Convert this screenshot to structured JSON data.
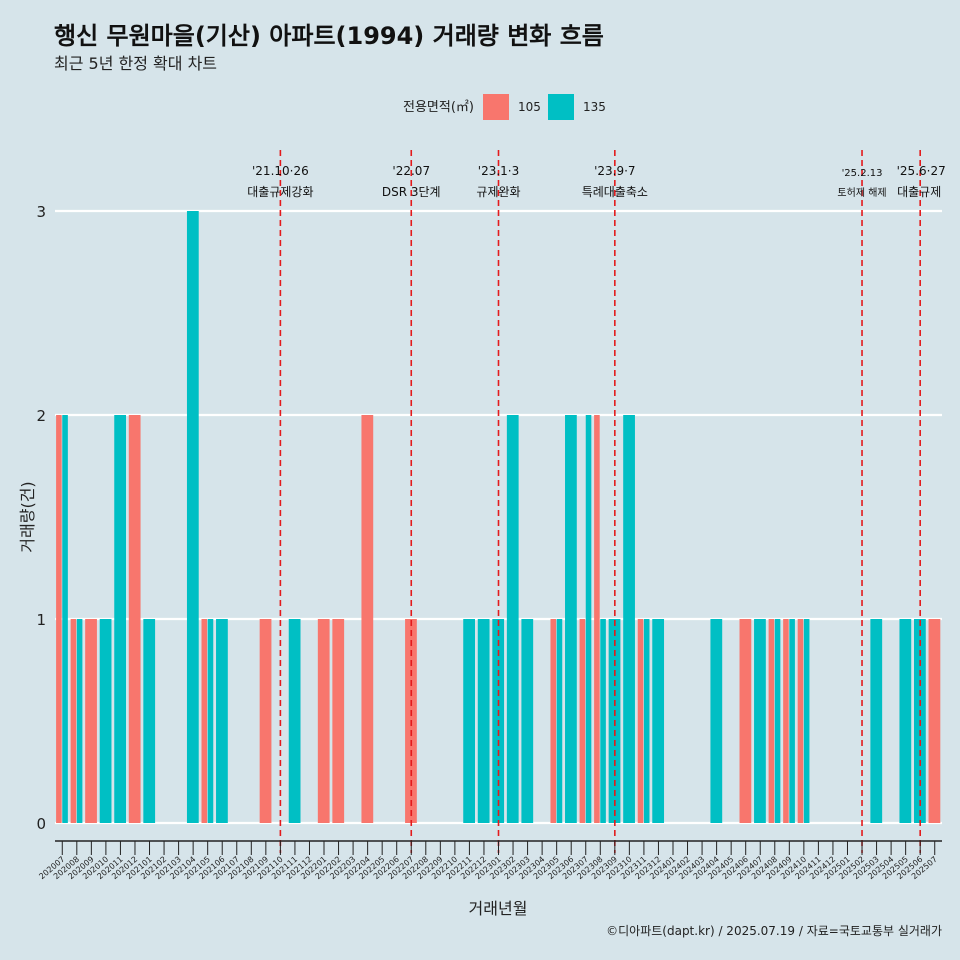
{
  "chart_data": {
    "type": "bar",
    "title": "행신 무원마을(기산) 아파트(1994) 거래량 변화 흐름",
    "subtitle": "최근 5년 한정 확대 차트",
    "xlabel": "거래년월",
    "ylabel": "거래량(건)",
    "caption": "©디아파트(dapt.kr) / 2025.07.19 / 자료=국토교통부 실거래가",
    "legend_title": "전용면적(㎡)",
    "legend_placement": "top",
    "ylim": [
      0,
      3
    ],
    "y_ticks": [
      "0",
      "1",
      "2",
      "3"
    ],
    "grid": true,
    "categories": [
      "202007",
      "202008",
      "202009",
      "202010",
      "202011",
      "202012",
      "202101",
      "202102",
      "202103",
      "202104",
      "202105",
      "202106",
      "202107",
      "202108",
      "202109",
      "202110",
      "202111",
      "202112",
      "202201",
      "202202",
      "202203",
      "202204",
      "202205",
      "202206",
      "202207",
      "202208",
      "202209",
      "202210",
      "202211",
      "202212",
      "202301",
      "202302",
      "202303",
      "202304",
      "202305",
      "202306",
      "202307",
      "202308",
      "202309",
      "202310",
      "202311",
      "202312",
      "202401",
      "202402",
      "202403",
      "202404",
      "202405",
      "202406",
      "202407",
      "202408",
      "202409",
      "202410",
      "202411",
      "202412",
      "202501",
      "202502",
      "202503",
      "202504",
      "202505",
      "202506",
      "202507"
    ],
    "series": [
      {
        "name": "105",
        "color": "#f8766d",
        "values": [
          2,
          1,
          1,
          0,
          0,
          2,
          0,
          0,
          0,
          0,
          1,
          0,
          0,
          0,
          1,
          0,
          0,
          0,
          1,
          1,
          0,
          2,
          0,
          0,
          1,
          0,
          0,
          0,
          0,
          0,
          0,
          0,
          0,
          0,
          1,
          0,
          1,
          2,
          0,
          0,
          1,
          0,
          0,
          0,
          0,
          0,
          0,
          1,
          0,
          1,
          1,
          1,
          0,
          0,
          0,
          0,
          0,
          0,
          0,
          0,
          1
        ]
      },
      {
        "name": "135",
        "color": "#00bfc4",
        "values": [
          2,
          1,
          0,
          1,
          2,
          0,
          1,
          0,
          0,
          3,
          1,
          1,
          0,
          0,
          0,
          0,
          1,
          0,
          0,
          0,
          0,
          0,
          0,
          0,
          0,
          0,
          0,
          0,
          1,
          1,
          1,
          2,
          1,
          0,
          1,
          2,
          2,
          1,
          1,
          2,
          1,
          1,
          0,
          0,
          0,
          1,
          0,
          0,
          1,
          1,
          1,
          1,
          0,
          0,
          0,
          0,
          1,
          0,
          1,
          1,
          0
        ]
      }
    ],
    "annotations": [
      {
        "x": "202110",
        "label_top": "'21.10·26",
        "label_bottom": "대출규제강화"
      },
      {
        "x": "202207",
        "label_top": "'22.07",
        "label_bottom": "DSR 3단계"
      },
      {
        "x": "202301",
        "label_top": "'23.1·3",
        "label_bottom": "규제완화"
      },
      {
        "x": "202309",
        "label_top": "'23.9·7",
        "label_bottom": "특례대출축소"
      },
      {
        "x": "202502",
        "label_top": "'25.2.13",
        "label_bottom": "토허제 해제"
      },
      {
        "x": "202506",
        "label_top": "'25.6·27",
        "label_bottom": "대출규제"
      }
    ],
    "annotation_line_color": "#e31a1c"
  }
}
